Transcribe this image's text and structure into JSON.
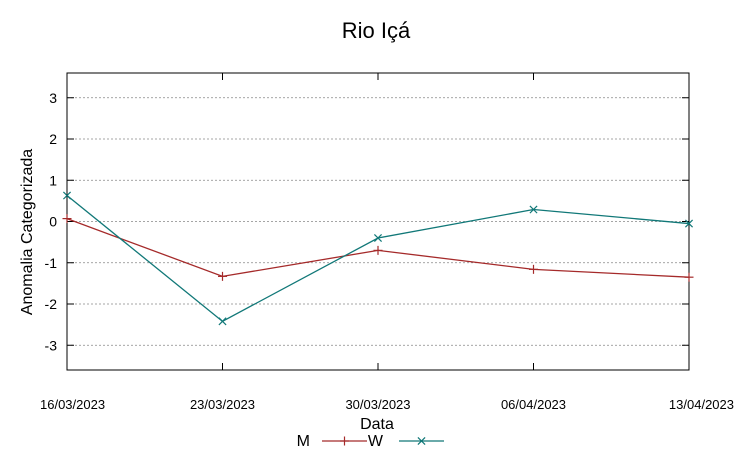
{
  "chart_data": {
    "type": "line",
    "title": "Rio Içá",
    "xlabel": "Data",
    "ylabel": "Anomalia Categorizada",
    "categories": [
      "16/03/2023",
      "23/03/2023",
      "30/03/2023",
      "06/04/2023",
      "13/04/2023"
    ],
    "yticks": [
      "3",
      "2",
      "1",
      "0",
      "-1",
      "-2",
      "-3"
    ],
    "ylim": [
      -3.6,
      3.6
    ],
    "grid": true,
    "legend_position": "bottom-center",
    "series": [
      {
        "name": "M",
        "color": "#a52a2a",
        "marker": "plus",
        "values": [
          0.07,
          -1.33,
          -0.7,
          -1.16,
          -1.35
        ]
      },
      {
        "name": "W",
        "color": "#117878",
        "marker": "cross",
        "values": [
          0.63,
          -2.42,
          -0.4,
          0.29,
          -0.05
        ]
      }
    ]
  }
}
